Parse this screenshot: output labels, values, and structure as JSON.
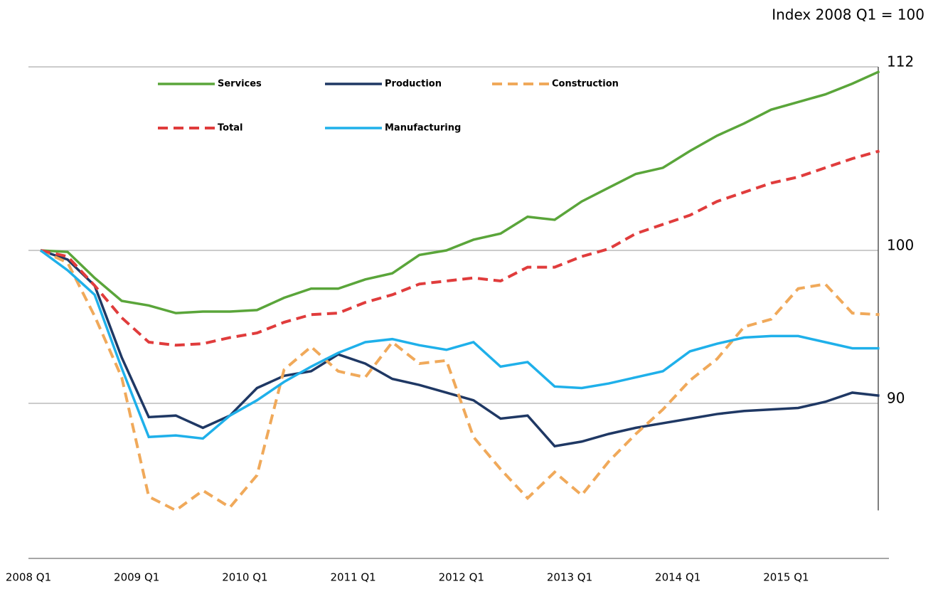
{
  "chart_data": {
    "type": "line",
    "annotation": "Index 2008 Q1 = 100",
    "categories": [
      "2008 Q1",
      null,
      null,
      null,
      "2009 Q1",
      null,
      null,
      null,
      "2010 Q1",
      null,
      null,
      null,
      "2011 Q1",
      null,
      null,
      null,
      "2012 Q1",
      null,
      null,
      null,
      "2013 Q1",
      null,
      null,
      null,
      "2014 Q1",
      null,
      null,
      null,
      "2015 Q1",
      null,
      null,
      null
    ],
    "series": [
      {
        "name": "Services",
        "color": "#5aa53a",
        "dash": false,
        "values": [
          100,
          99.9,
          98.2,
          96.7,
          96.4,
          95.9,
          96,
          96,
          96.1,
          96.9,
          97.5,
          97.5,
          98.1,
          98.5,
          99.7,
          100,
          100.7,
          101.1,
          102.2,
          102,
          103.2,
          104.1,
          105,
          105.4,
          106.5,
          107.5,
          108.3,
          109.2,
          109.7,
          110.2,
          110.9,
          111.7
        ]
      },
      {
        "name": "Production",
        "color": "#1f3864",
        "dash": false,
        "values": [
          100,
          99.4,
          97.7,
          93,
          89.1,
          89.2,
          88.4,
          89.2,
          91,
          91.8,
          92.1,
          93.2,
          92.6,
          91.6,
          91.2,
          90.7,
          90.2,
          89,
          89.2,
          87.2,
          87.5,
          88,
          88.4,
          88.7,
          89,
          89.3,
          89.5,
          89.6,
          89.7,
          90.1,
          90.7,
          90.5
        ]
      },
      {
        "name": "Construction",
        "color": "#f0a95a",
        "dash": true,
        "values": [
          100,
          99.2,
          95.7,
          91.7,
          83.9,
          83,
          84.3,
          83.2,
          85.3,
          92.2,
          93.7,
          92.1,
          91.7,
          94,
          92.6,
          92.8,
          87.8,
          85.7,
          83.8,
          85.5,
          84,
          86.2,
          88,
          89.6,
          91.5,
          92.9,
          95,
          95.5,
          97.5,
          97.8,
          95.9,
          95.8
        ]
      },
      {
        "name": "Total",
        "color": "#e03c3c",
        "dash": true,
        "values": [
          100,
          99.6,
          97.7,
          95.6,
          94,
          93.8,
          93.9,
          94.3,
          94.6,
          95.3,
          95.8,
          95.9,
          96.6,
          97.1,
          97.8,
          98,
          98.2,
          98,
          98.9,
          98.9,
          99.6,
          100.1,
          101.1,
          101.7,
          102.3,
          103.2,
          103.8,
          104.4,
          104.8,
          105.4,
          106,
          106.5
        ]
      },
      {
        "name": "Manufacturing",
        "color": "#1fb0ea",
        "dash": false,
        "values": [
          100,
          98.7,
          97.1,
          92.3,
          87.8,
          87.9,
          87.7,
          89.2,
          90.2,
          91.4,
          92.4,
          93.3,
          94,
          94.2,
          93.8,
          93.5,
          94,
          92.4,
          92.7,
          91.1,
          91,
          91.3,
          91.7,
          92.1,
          93.4,
          93.9,
          94.3,
          94.4,
          94.4,
          94,
          93.6,
          93.6
        ]
      }
    ],
    "ylim": [
      83,
      112
    ],
    "yticks": [
      90,
      100,
      112
    ],
    "grid": true,
    "y_axis_side": "right"
  }
}
